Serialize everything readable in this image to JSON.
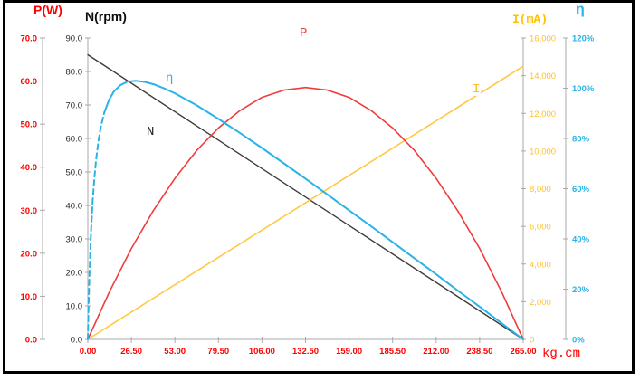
{
  "window": {
    "background": "#ffffff",
    "border_color": "#000000"
  },
  "labels": {
    "p_axis_title": "P(W)",
    "n_axis_title": "N(rpm)",
    "i_axis_title": "I(mA)",
    "eta_axis_title": "η",
    "x_unit": "kg.cm"
  },
  "chart_data": {
    "type": "line",
    "title": "",
    "grid": false,
    "legend": "none (curves labeled inline: P, N, I, η)",
    "x_axis": {
      "label": "kg.cm",
      "min": 0,
      "max": 265,
      "color": "#ff0000",
      "tick_values": [
        0,
        26.5,
        53,
        79.5,
        106,
        132.5,
        159,
        185.5,
        212,
        238.5,
        265
      ],
      "tick_labels": [
        "0.00",
        "26.50",
        "53.00",
        "79.50",
        "106.00",
        "132.50",
        "159.00",
        "185.50",
        "212.00",
        "238.50",
        "265.00"
      ]
    },
    "y_axes": [
      {
        "id": "P",
        "label": "P(W)",
        "side": "left",
        "min": 0,
        "max": 70,
        "color": "#ff0000",
        "bold": true,
        "tick_values": [
          0,
          10,
          20,
          30,
          40,
          50,
          60,
          70
        ],
        "tick_labels": [
          "0.0",
          "10.0",
          "20.0",
          "30.0",
          "40.0",
          "50.0",
          "60.0",
          "70.0"
        ]
      },
      {
        "id": "N",
        "label": "N(rpm)",
        "side": "left",
        "min": 0,
        "max": 90,
        "color": "#2b2b2b",
        "bold": false,
        "tick_values": [
          0,
          10,
          20,
          30,
          40,
          50,
          60,
          70,
          80,
          90
        ],
        "tick_labels": [
          "0.0",
          "10.0",
          "20.0",
          "30.0",
          "40.0",
          "50.0",
          "60.0",
          "70.0",
          "80.0",
          "90.0"
        ]
      },
      {
        "id": "I",
        "label": "I(mA)",
        "side": "right",
        "min": 0,
        "max": 16000,
        "color": "#ffbf2f",
        "bold": false,
        "tick_values": [
          0,
          2000,
          4000,
          6000,
          8000,
          10000,
          12000,
          14000,
          16000
        ],
        "tick_labels": [
          "0",
          "2,000",
          "4,000",
          "6,000",
          "8,000",
          "10,000",
          "12,000",
          "14,000",
          "16,000"
        ]
      },
      {
        "id": "eta",
        "label": "η",
        "side": "right",
        "min": 0,
        "max": 120,
        "color": "#29b3e8",
        "bold": true,
        "tick_values": [
          0,
          20,
          40,
          60,
          80,
          100,
          120
        ],
        "tick_labels": [
          "0%",
          "20%",
          "40%",
          "60%",
          "80%",
          "100%",
          "120%"
        ]
      }
    ],
    "series": [
      {
        "name": "P",
        "axis": "P",
        "color": "#f23b3b",
        "style": "solid",
        "points": [
          [
            0,
            0
          ],
          [
            13.25,
            11.1
          ],
          [
            26.5,
            21.1
          ],
          [
            39.75,
            29.8
          ],
          [
            53,
            37.4
          ],
          [
            66.25,
            43.9
          ],
          [
            79.5,
            49.1
          ],
          [
            92.75,
            53.2
          ],
          [
            106,
            56.2
          ],
          [
            119.25,
            57.9
          ],
          [
            132.5,
            58.5
          ],
          [
            145.75,
            57.9
          ],
          [
            159,
            56.2
          ],
          [
            172.25,
            53.2
          ],
          [
            185.5,
            49.1
          ],
          [
            198.75,
            43.9
          ],
          [
            212,
            37.4
          ],
          [
            225.25,
            29.8
          ],
          [
            238.5,
            21.1
          ],
          [
            251.75,
            11.1
          ],
          [
            265,
            0
          ]
        ]
      },
      {
        "name": "N",
        "axis": "N",
        "color": "#3d3d3d",
        "style": "solid",
        "points": [
          [
            0,
            85
          ],
          [
            265,
            0
          ]
        ]
      },
      {
        "name": "I",
        "axis": "I",
        "color": "#ffc845",
        "style": "solid",
        "points": [
          [
            0,
            0
          ],
          [
            265,
            14500
          ]
        ]
      },
      {
        "name": "η",
        "axis": "eta",
        "color": "#29b3e8",
        "style": "dashed-then-solid",
        "dashed_until": 10,
        "points": [
          [
            0,
            0
          ],
          [
            0.5,
            14.4
          ],
          [
            1,
            26
          ],
          [
            2,
            43.3
          ],
          [
            3,
            55.4
          ],
          [
            4,
            64.4
          ],
          [
            5,
            71.4
          ],
          [
            6.5,
            79.2
          ],
          [
            8,
            84.8
          ],
          [
            10,
            90.3
          ],
          [
            13,
            95.5
          ],
          [
            16,
            98.8
          ],
          [
            20,
            101.3
          ],
          [
            24,
            102.6
          ],
          [
            29,
            103
          ],
          [
            35,
            102.5
          ],
          [
            40,
            101.6
          ],
          [
            47,
            99.8
          ],
          [
            53,
            98
          ],
          [
            66.25,
            93.2
          ],
          [
            79.5,
            87.8
          ],
          [
            92.75,
            82.1
          ],
          [
            106,
            76.2
          ],
          [
            119.25,
            70.1
          ],
          [
            132.5,
            64
          ],
          [
            145.75,
            57.7
          ],
          [
            159,
            51.4
          ],
          [
            172.25,
            45.1
          ],
          [
            185.5,
            38.7
          ],
          [
            198.75,
            32.3
          ],
          [
            212,
            25.9
          ],
          [
            225.25,
            19.4
          ],
          [
            238.5,
            13
          ],
          [
            251.75,
            6.5
          ],
          [
            265,
            0
          ]
        ]
      }
    ]
  }
}
